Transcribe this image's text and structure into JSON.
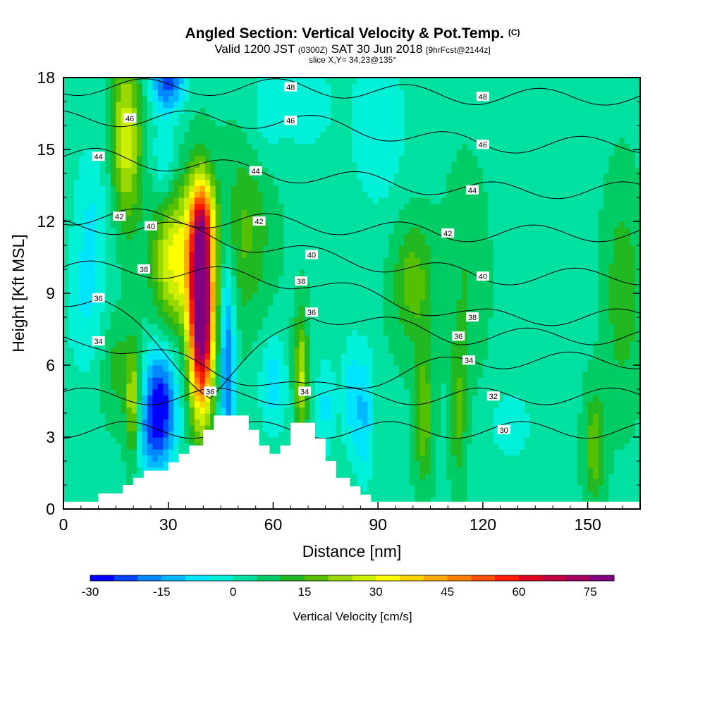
{
  "header": {
    "title": "Angled Section: Vertical Velocity & Pot.Temp.",
    "title_tag": "(C)",
    "valid_prefix": "Valid 1200 JST",
    "valid_zulu": "(0300Z)",
    "valid_date": "SAT 30 Jun 2018",
    "forecast_tag": "[9hrFcst@2144z]",
    "slice": "slice X,Y= 34,23@135°"
  },
  "chart_data": {
    "type": "heatmap",
    "title": "Angled Section: Vertical Velocity & Pot.Temp.",
    "xlabel": "Distance [nm]",
    "ylabel": "Height [Kft MSL]",
    "xlim": [
      0,
      165
    ],
    "ylim": [
      0,
      18
    ],
    "xticks": [
      0,
      30,
      60,
      90,
      120,
      150
    ],
    "yticks": [
      0,
      3,
      6,
      9,
      12,
      15,
      18
    ],
    "colorbar": {
      "label": "Vertical Velocity [cm/s]",
      "min": -30,
      "max": 85,
      "step": 5,
      "ticks": [
        -30,
        -15,
        0,
        15,
        30,
        45,
        60,
        75
      ],
      "colors": [
        "#0000ff",
        "#0044ff",
        "#0088ff",
        "#00b8ff",
        "#00e4ff",
        "#00f0d8",
        "#00e0a0",
        "#00cc66",
        "#22b822",
        "#55c000",
        "#99d800",
        "#ccee00",
        "#ffff00",
        "#ffd400",
        "#ffaa00",
        "#ff8000",
        "#ff5000",
        "#ff1a00",
        "#e00020",
        "#c00040",
        "#a00060",
        "#800080"
      ]
    },
    "terrain": [
      [
        0,
        0.3
      ],
      [
        10,
        0.3
      ],
      [
        10,
        0.65
      ],
      [
        17,
        0.65
      ],
      [
        17,
        1.0
      ],
      [
        20,
        1.0
      ],
      [
        20,
        1.3
      ],
      [
        23,
        1.3
      ],
      [
        23,
        1.6
      ],
      [
        30,
        1.6
      ],
      [
        30,
        1.95
      ],
      [
        33,
        1.95
      ],
      [
        33,
        2.3
      ],
      [
        36,
        2.3
      ],
      [
        36,
        2.65
      ],
      [
        40,
        2.65
      ],
      [
        40,
        3.3
      ],
      [
        43,
        3.3
      ],
      [
        43,
        3.9
      ],
      [
        53,
        3.9
      ],
      [
        53,
        3.3
      ],
      [
        56,
        3.3
      ],
      [
        56,
        2.65
      ],
      [
        59,
        2.65
      ],
      [
        59,
        2.3
      ],
      [
        62,
        2.3
      ],
      [
        62,
        2.65
      ],
      [
        65,
        2.65
      ],
      [
        65,
        3.6
      ],
      [
        72,
        3.6
      ],
      [
        72,
        2.95
      ],
      [
        75,
        2.95
      ],
      [
        75,
        2.0
      ],
      [
        78,
        2.0
      ],
      [
        78,
        1.3
      ],
      [
        82,
        1.3
      ],
      [
        82,
        0.95
      ],
      [
        85,
        0.95
      ],
      [
        85,
        0.6
      ],
      [
        88,
        0.6
      ],
      [
        88,
        0.3
      ],
      [
        165,
        0.3
      ]
    ],
    "theta_contour_labels": [
      {
        "text": "48",
        "x": 65,
        "y": 17.6
      },
      {
        "text": "48",
        "x": 120,
        "y": 17.2
      },
      {
        "text": "46",
        "x": 19,
        "y": 16.3
      },
      {
        "text": "46",
        "x": 65,
        "y": 16.2
      },
      {
        "text": "46",
        "x": 120,
        "y": 15.2
      },
      {
        "text": "44",
        "x": 10,
        "y": 14.7
      },
      {
        "text": "44",
        "x": 55,
        "y": 14.1
      },
      {
        "text": "44",
        "x": 117,
        "y": 13.3
      },
      {
        "text": "42",
        "x": 16,
        "y": 12.2
      },
      {
        "text": "42",
        "x": 56,
        "y": 12.0
      },
      {
        "text": "42",
        "x": 110,
        "y": 11.5
      },
      {
        "text": "40",
        "x": 25,
        "y": 11.8
      },
      {
        "text": "40",
        "x": 71,
        "y": 10.6
      },
      {
        "text": "40",
        "x": 120,
        "y": 9.7
      },
      {
        "text": "38",
        "x": 23,
        "y": 10.0
      },
      {
        "text": "38",
        "x": 68,
        "y": 9.5
      },
      {
        "text": "38",
        "x": 117,
        "y": 8.0
      },
      {
        "text": "36",
        "x": 10,
        "y": 8.8
      },
      {
        "text": "36",
        "x": 71,
        "y": 8.2
      },
      {
        "text": "36",
        "x": 113,
        "y": 7.2
      },
      {
        "text": "36",
        "x": 42,
        "y": 4.9
      },
      {
        "text": "34",
        "x": 10,
        "y": 7.0
      },
      {
        "text": "34",
        "x": 116,
        "y": 6.2
      },
      {
        "text": "34",
        "x": 69,
        "y": 4.9
      },
      {
        "text": "32",
        "x": 123,
        "y": 4.7
      },
      {
        "text": "30",
        "x": 126,
        "y": 3.3
      }
    ],
    "w_features": [
      {
        "x": 18,
        "y": 15.5,
        "sx": 3.0,
        "sy": 2.5,
        "w": 25
      },
      {
        "x": 32,
        "y": 10.5,
        "sx": 4.5,
        "sy": 2.2,
        "w": 28
      },
      {
        "x": 39.5,
        "y": 8.2,
        "sx": 2.4,
        "sy": 2.8,
        "w": 85
      },
      {
        "x": 39.5,
        "y": 12.0,
        "sx": 2.5,
        "sy": 1.4,
        "w": 30
      },
      {
        "x": 28,
        "y": 4.3,
        "sx": 3.2,
        "sy": 1.8,
        "w": -32
      },
      {
        "x": 24,
        "y": 3.2,
        "sx": 2.5,
        "sy": 1.5,
        "w": -12
      },
      {
        "x": 20,
        "y": 4.5,
        "sx": 1.5,
        "sy": 1.6,
        "w": 22
      },
      {
        "x": 47,
        "y": 6.0,
        "sx": 1.5,
        "sy": 3.2,
        "w": -25
      },
      {
        "x": 30,
        "y": 17.8,
        "sx": 3.5,
        "sy": 0.8,
        "w": -25
      },
      {
        "x": 29,
        "y": 14.5,
        "sx": 2.5,
        "sy": 1.5,
        "w": -12
      },
      {
        "x": 60,
        "y": 5.2,
        "sx": 2.8,
        "sy": 1.5,
        "w": -12
      },
      {
        "x": 68,
        "y": 5.5,
        "sx": 1.4,
        "sy": 1.8,
        "w": 22
      },
      {
        "x": 75,
        "y": 4.3,
        "sx": 2.2,
        "sy": 1.5,
        "w": -10
      },
      {
        "x": 82,
        "y": 4.8,
        "sx": 1.8,
        "sy": 1.8,
        "w": -10
      },
      {
        "x": 86,
        "y": 4.0,
        "sx": 2.0,
        "sy": 2.0,
        "w": -14
      },
      {
        "x": 90,
        "y": 16.0,
        "sx": 6.0,
        "sy": 2.5,
        "w": -9
      },
      {
        "x": 70,
        "y": 17.0,
        "sx": 5.0,
        "sy": 1.5,
        "w": -8
      },
      {
        "x": 58,
        "y": 16.5,
        "sx": 4.0,
        "sy": 1.5,
        "w": -7
      },
      {
        "x": 100,
        "y": 9.5,
        "sx": 4.0,
        "sy": 1.8,
        "w": 14
      },
      {
        "x": 103,
        "y": 4.0,
        "sx": 1.8,
        "sy": 2.0,
        "w": 16
      },
      {
        "x": 113,
        "y": 4.0,
        "sx": 1.5,
        "sy": 2.0,
        "w": 12
      },
      {
        "x": 128,
        "y": 3.5,
        "sx": 5.0,
        "sy": 1.2,
        "w": -7
      },
      {
        "x": 152,
        "y": 2.6,
        "sx": 2.0,
        "sy": 1.6,
        "w": 15
      },
      {
        "x": 160,
        "y": 9.0,
        "sx": 3.5,
        "sy": 3.0,
        "w": 10
      },
      {
        "x": 115,
        "y": 9.5,
        "sx": 4.0,
        "sy": 3.0,
        "w": 6
      },
      {
        "x": 8,
        "y": 12.0,
        "sx": 4.0,
        "sy": 2.5,
        "w": -9
      },
      {
        "x": 6,
        "y": 8.0,
        "sx": 4.0,
        "sy": 2.0,
        "w": -7
      },
      {
        "x": 15,
        "y": 6.0,
        "sx": 3.0,
        "sy": 1.5,
        "w": 8
      },
      {
        "x": 52,
        "y": 11.5,
        "sx": 5.0,
        "sy": 2.5,
        "w": 12
      }
    ]
  }
}
